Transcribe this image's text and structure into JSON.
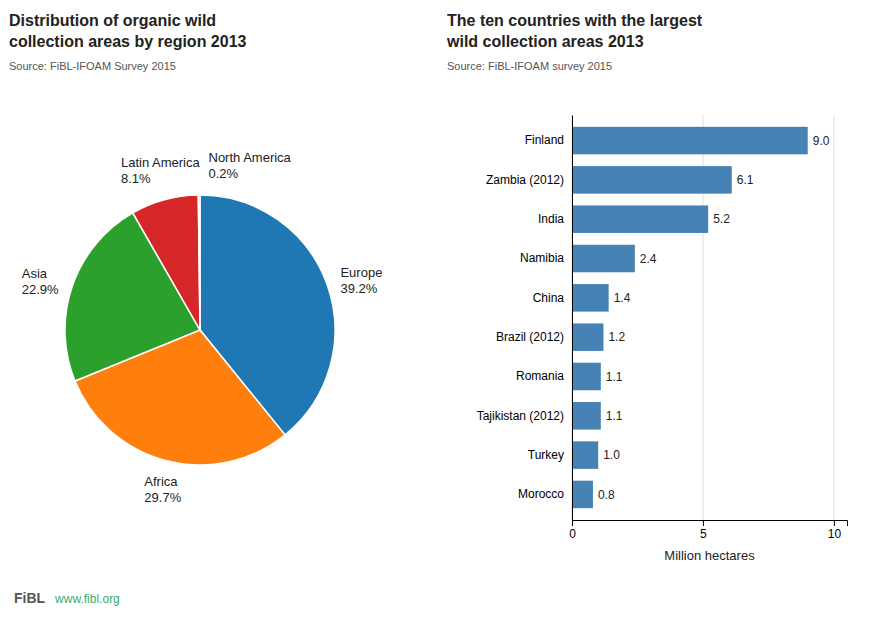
{
  "chart_data": [
    {
      "type": "pie",
      "title": "Distribution of organic wild\ncollection areas  by region 2013",
      "subtitle": "Source: FiBL-IFOAM Survey 2015",
      "categories": [
        "Europe",
        "Africa",
        "Asia",
        "Latin America",
        "North America"
      ],
      "values": [
        39.2,
        29.7,
        22.9,
        8.1,
        0.2
      ],
      "value_labels": [
        "39.2%",
        "29.7%",
        "22.9%",
        "8.1%",
        "0.2%"
      ],
      "data_labels": true,
      "annotations": [
        "FiBL",
        "www.fibl.org"
      ]
    },
    {
      "type": "bar",
      "orientation": "horizontal",
      "title": "The ten countries with the largest\nwild collection areas 2013",
      "subtitle": "Source: FiBL-IFOAM survey 2015",
      "categories": [
        "Finland",
        "Zambia (2012)",
        "India",
        "Namibia",
        "China",
        "Brazil (2012)",
        "Romania",
        "Tajikistan (2012)",
        "Turkey",
        "Morocco"
      ],
      "values": [
        9.0,
        6.1,
        5.2,
        2.4,
        1.4,
        1.2,
        1.1,
        1.1,
        1.0,
        0.8
      ],
      "value_labels": [
        "9.0",
        "6.1",
        "5.2",
        "2.4",
        "1.4",
        "1.2",
        "1.1",
        "1.1",
        "1.0",
        "0.8"
      ],
      "data_labels": true,
      "x_label": "Million hectares",
      "xlim": [
        0,
        10.5
      ],
      "xticks": [
        0,
        5,
        10
      ],
      "grid": true
    }
  ]
}
